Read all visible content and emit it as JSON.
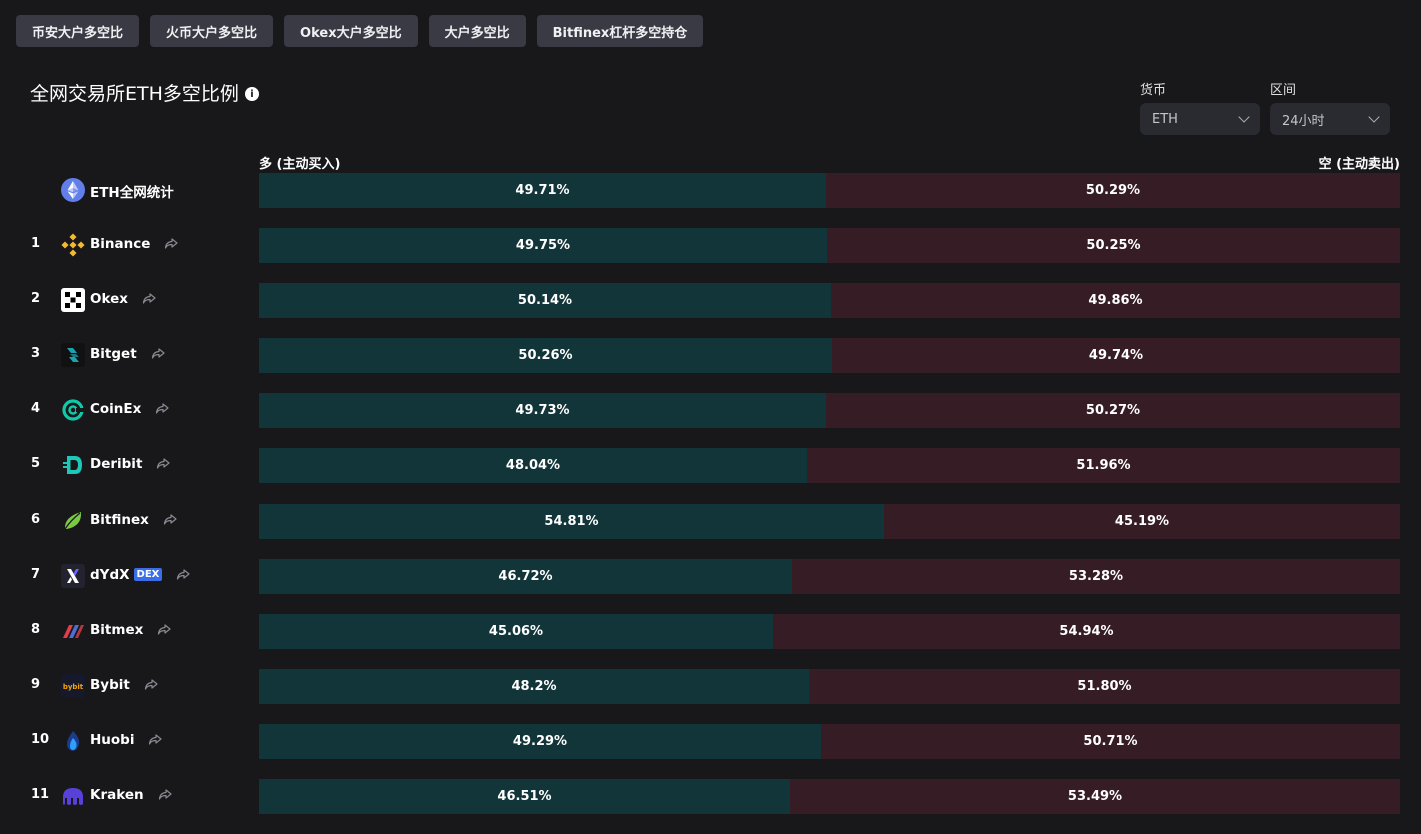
{
  "tabs": [
    "币安大户多空比",
    "火币大户多空比",
    "Okex大户多空比",
    "大户多空比",
    "Bitfinex杠杆多空持仓"
  ],
  "title": "全网交易所ETH多空比例",
  "filters": {
    "currency_label": "货币",
    "currency_value": "ETH",
    "period_label": "区间",
    "period_value": "24小时"
  },
  "columns": {
    "long": "多 (主动买入)",
    "short": "空 (主动卖出)"
  },
  "rows": [
    {
      "rank": "",
      "name": "ETH全网统计",
      "icon": "eth-logo-icon",
      "long": "49.71%",
      "short": "50.29%",
      "long_pct": 49.71
    },
    {
      "rank": "1",
      "name": "Binance",
      "icon": "binance-logo-icon",
      "long": "49.75%",
      "short": "50.25%",
      "long_pct": 49.75
    },
    {
      "rank": "2",
      "name": "Okex",
      "icon": "okex-logo-icon",
      "long": "50.14%",
      "short": "49.86%",
      "long_pct": 50.14
    },
    {
      "rank": "3",
      "name": "Bitget",
      "icon": "bitget-logo-icon",
      "long": "50.26%",
      "short": "49.74%",
      "long_pct": 50.26
    },
    {
      "rank": "4",
      "name": "CoinEx",
      "icon": "coinex-logo-icon",
      "long": "49.73%",
      "short": "50.27%",
      "long_pct": 49.73
    },
    {
      "rank": "5",
      "name": "Deribit",
      "icon": "deribit-logo-icon",
      "long": "48.04%",
      "short": "51.96%",
      "long_pct": 48.04
    },
    {
      "rank": "6",
      "name": "Bitfinex",
      "icon": "bitfinex-logo-icon",
      "long": "54.81%",
      "short": "45.19%",
      "long_pct": 54.81
    },
    {
      "rank": "7",
      "name": "dYdX",
      "badge": "DEX",
      "icon": "dydx-logo-icon",
      "long": "46.72%",
      "short": "53.28%",
      "long_pct": 46.72
    },
    {
      "rank": "8",
      "name": "Bitmex",
      "icon": "bitmex-logo-icon",
      "long": "45.06%",
      "short": "54.94%",
      "long_pct": 45.06
    },
    {
      "rank": "9",
      "name": "Bybit",
      "icon": "bybit-logo-icon",
      "long": "48.2%",
      "short": "51.80%",
      "long_pct": 48.2
    },
    {
      "rank": "10",
      "name": "Huobi",
      "icon": "huobi-logo-icon",
      "long": "49.29%",
      "short": "50.71%",
      "long_pct": 49.29
    },
    {
      "rank": "11",
      "name": "Kraken",
      "icon": "kraken-logo-icon",
      "long": "46.51%",
      "short": "53.49%",
      "long_pct": 46.51
    }
  ]
}
